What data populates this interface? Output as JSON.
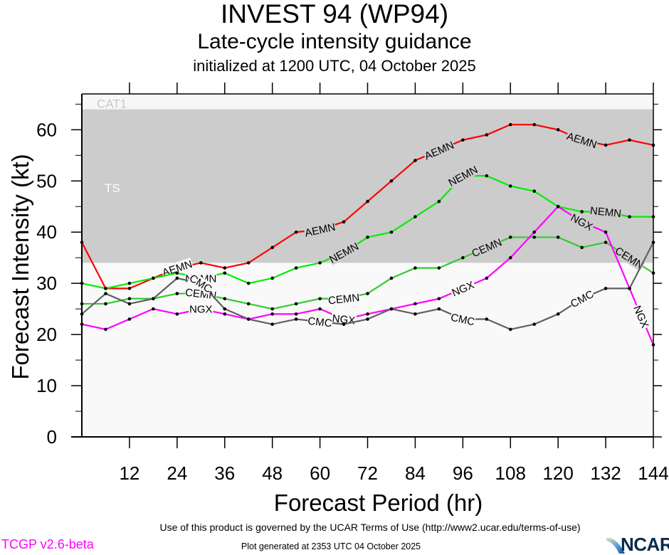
{
  "header": {
    "title": "INVEST 94 (WP94)",
    "subtitle": "Late-cycle intensity guidance",
    "init_line": "initialized at 1200 UTC, 04 October 2025"
  },
  "footer": {
    "terms": "Use of this product is governed by the UCAR Terms of Use (http://www2.ucar.edu/terms-of-use)",
    "generated": "Plot generated at 2353 UTC   04 October 2025",
    "version": "TCGP v2.6-beta",
    "logo_text": "NCAR"
  },
  "chart_data": {
    "type": "line",
    "title": "INVEST 94 (WP94) Late-cycle intensity guidance",
    "xlabel": "Forecast Period (hr)",
    "ylabel": "Forecast Intensity (kt)",
    "xlim": [
      0,
      144
    ],
    "ylim": [
      0,
      67
    ],
    "xticks": [
      12,
      24,
      36,
      48,
      60,
      72,
      84,
      96,
      108,
      120,
      132,
      144
    ],
    "xminor": [
      6,
      18,
      30,
      42,
      54,
      66,
      78,
      90,
      102,
      114,
      126,
      138
    ],
    "yticks": [
      0,
      10,
      20,
      30,
      40,
      50,
      60
    ],
    "yminor": [
      5,
      15,
      25,
      35,
      45,
      55,
      65
    ],
    "bands": [
      {
        "label": "TS",
        "from": 34,
        "to": 64,
        "color": "#cccccc"
      },
      {
        "label": "CAT1",
        "from": 64,
        "to": 67,
        "color": "#f7f7f7"
      },
      {
        "label": "",
        "from": 0,
        "to": 34,
        "color": "#f9f9f9"
      }
    ],
    "x": [
      0,
      6,
      12,
      18,
      24,
      30,
      36,
      42,
      48,
      54,
      60,
      66,
      72,
      78,
      84,
      90,
      96,
      102,
      108,
      114,
      120,
      126,
      132,
      138,
      144
    ],
    "series": [
      {
        "name": "AEMN",
        "color": "#ff0000",
        "values": [
          38,
          29,
          29,
          31,
          33,
          34,
          33,
          34,
          37,
          40,
          40.5,
          42,
          46,
          50,
          54,
          56,
          58,
          59,
          61,
          61,
          60,
          58,
          57,
          58,
          57
        ],
        "label_at": [
          24,
          60,
          90,
          126
        ]
      },
      {
        "name": "NEMN",
        "color": "#00ee00",
        "values": [
          30,
          29,
          30,
          31,
          32,
          31,
          32,
          30,
          31,
          33,
          34,
          36,
          39,
          40,
          43,
          46,
          51,
          51,
          49,
          48,
          45,
          44,
          44,
          43,
          43
        ],
        "label_at": [
          30,
          66,
          96,
          132
        ]
      },
      {
        "name": "CEMN",
        "color": "#33cc33",
        "values": [
          26,
          26,
          27,
          27,
          28,
          28,
          27,
          26,
          25,
          26,
          27,
          27,
          28,
          31,
          33,
          33,
          35,
          37,
          39,
          39,
          39,
          37,
          38,
          35,
          32
        ],
        "label_at": [
          30,
          66,
          102,
          138
        ]
      },
      {
        "name": "NGX",
        "color": "#ff00ff",
        "values": [
          22,
          21,
          23,
          25,
          24,
          25,
          24,
          23,
          24,
          24,
          25,
          23,
          24,
          25,
          26,
          27,
          29,
          31,
          35,
          40,
          45,
          42,
          40,
          29,
          18
        ],
        "label_at": [
          30,
          66,
          96,
          126,
          141
        ]
      },
      {
        "name": "CMC",
        "color": "#606060",
        "values": [
          24,
          28,
          26,
          27,
          31,
          30,
          25,
          23,
          22,
          23,
          22.5,
          22,
          23,
          25,
          24,
          25,
          23,
          23,
          21,
          22,
          24,
          27,
          29,
          29,
          38
        ],
        "label_at": [
          30,
          60,
          96,
          126
        ]
      }
    ]
  }
}
